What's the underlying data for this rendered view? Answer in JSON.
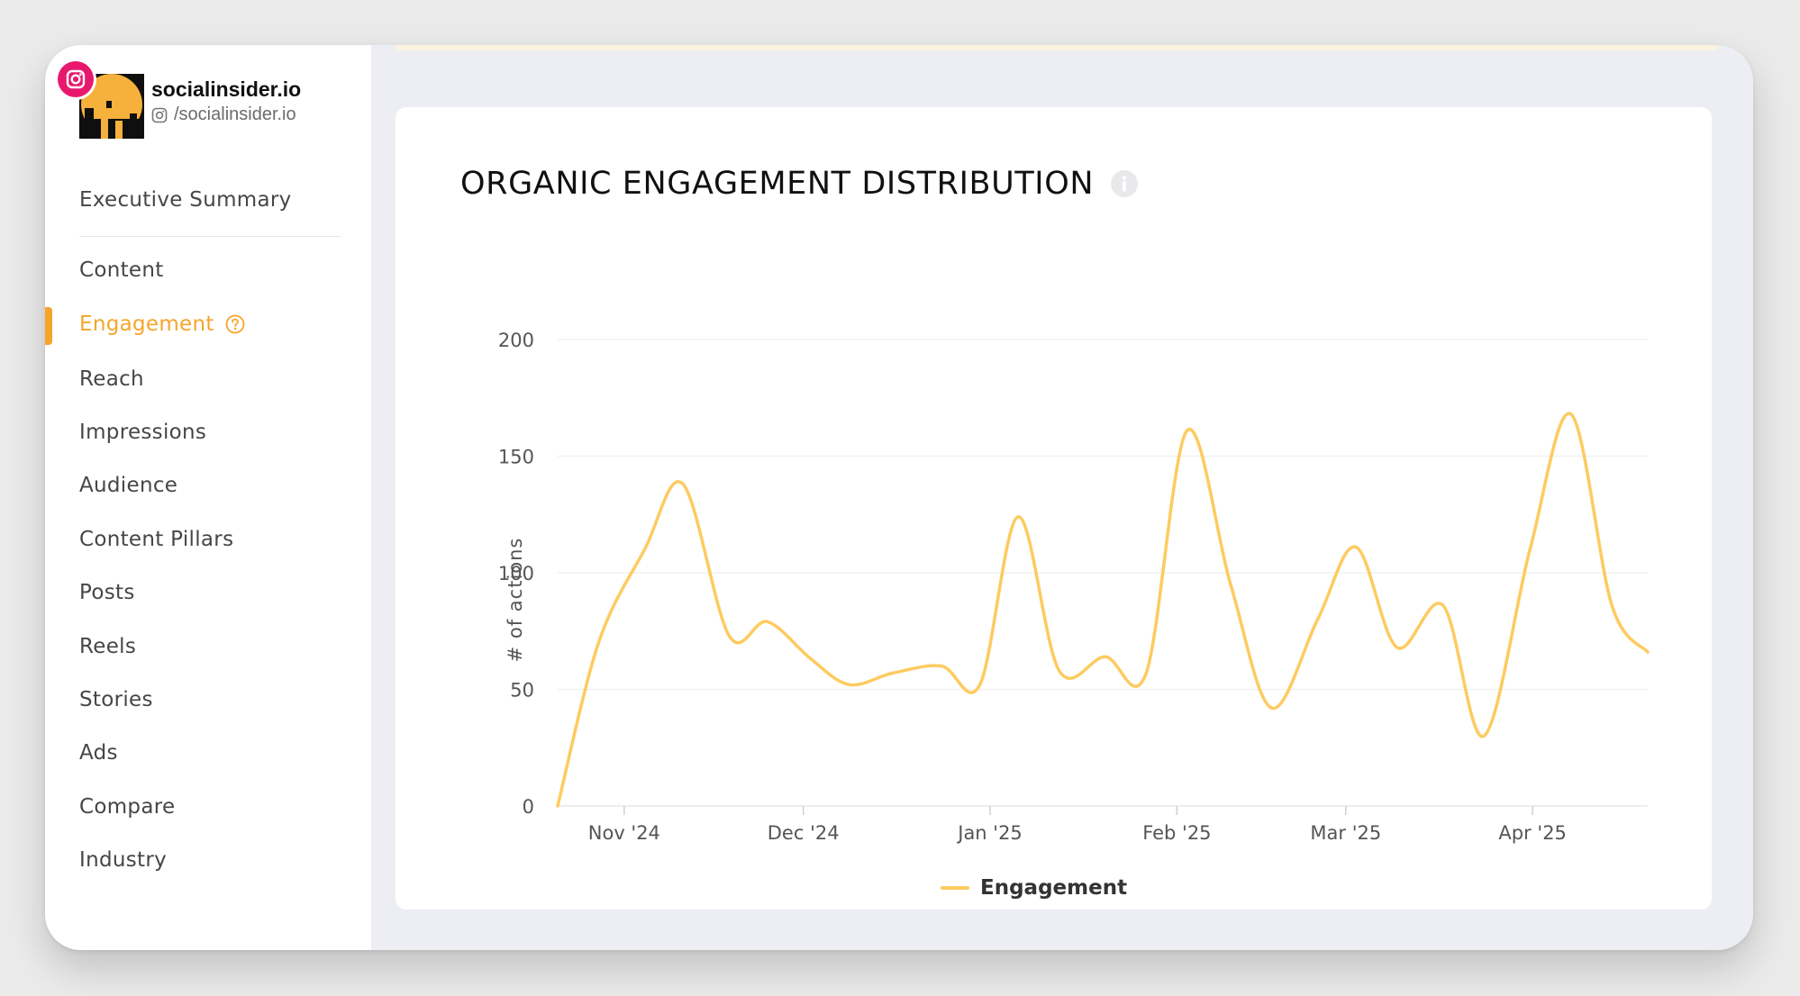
{
  "profile": {
    "name": "socialinsider.io",
    "handle": "/socialinsider.io"
  },
  "sidebar": {
    "items": [
      {
        "label": "Executive Summary"
      },
      {
        "label": "Content"
      },
      {
        "label": "Engagement",
        "active": true
      },
      {
        "label": "Reach"
      },
      {
        "label": "Impressions"
      },
      {
        "label": "Audience"
      },
      {
        "label": "Content Pillars"
      },
      {
        "label": "Posts"
      },
      {
        "label": "Reels"
      },
      {
        "label": "Stories"
      },
      {
        "label": "Ads"
      },
      {
        "label": "Compare"
      },
      {
        "label": "Industry"
      }
    ]
  },
  "colors": {
    "accent": "#f6a52a",
    "instagram": "#e8196d",
    "series": "#fdcb60"
  },
  "chart_data": {
    "type": "line",
    "title": "ORGANIC ENGAGEMENT DISTRIBUTION",
    "xlabel": "",
    "ylabel": "# of actions",
    "ylim": [
      0,
      200
    ],
    "yticks": [
      0,
      50,
      100,
      150,
      200
    ],
    "xlim": [
      -2.6,
      40
    ],
    "xticks": [
      {
        "label": "Nov '24",
        "day": 0
      },
      {
        "label": "Dec '24",
        "day": 7
      },
      {
        "label": "Jan '25",
        "day": 14.3
      },
      {
        "label": "Feb '25",
        "day": 21.6
      },
      {
        "label": "Mar '25",
        "day": 28.2
      },
      {
        "label": "Apr '25",
        "day": 35.5
      }
    ],
    "grid": true,
    "legend": "bottom-center",
    "series": [
      {
        "name": "Engagement",
        "points": [
          [
            -2.6,
            0
          ],
          [
            -1.0,
            70
          ],
          [
            0.8,
            110
          ],
          [
            2.3,
            138
          ],
          [
            4.1,
            73
          ],
          [
            5.6,
            79
          ],
          [
            7.3,
            63
          ],
          [
            8.8,
            52
          ],
          [
            10.5,
            57
          ],
          [
            12.4,
            60
          ],
          [
            13.9,
            52
          ],
          [
            15.4,
            124
          ],
          [
            17.0,
            58
          ],
          [
            18.8,
            64
          ],
          [
            20.4,
            57
          ],
          [
            22.0,
            161
          ],
          [
            23.7,
            95
          ],
          [
            25.3,
            42
          ],
          [
            27.1,
            80
          ],
          [
            28.6,
            111
          ],
          [
            30.2,
            68
          ],
          [
            32.0,
            86
          ],
          [
            33.6,
            30
          ],
          [
            35.4,
            110
          ],
          [
            37.0,
            168
          ],
          [
            38.6,
            86
          ],
          [
            40.0,
            66
          ]
        ]
      }
    ]
  }
}
